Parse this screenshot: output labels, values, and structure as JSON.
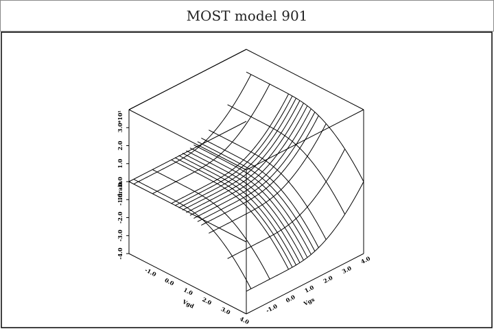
{
  "title": "MOST model 901",
  "z_axis": {
    "label": "Idrain",
    "multiplier": "*10¹",
    "ticks": [
      "-4.0",
      "-3.0",
      "-2.0",
      "-1.0",
      "0.0",
      "1.0",
      "2.0",
      "3.0"
    ]
  },
  "vgd_axis": {
    "label": "Vgd",
    "ticks": [
      "-1.0",
      "0.0",
      "1.0",
      "2.0",
      "3.0",
      "4.0"
    ]
  },
  "vgs_axis": {
    "label": "Vgs",
    "ticks": [
      "-1.0",
      "0.0",
      "1.0",
      "2.0",
      "3.0",
      "4.0"
    ]
  }
}
